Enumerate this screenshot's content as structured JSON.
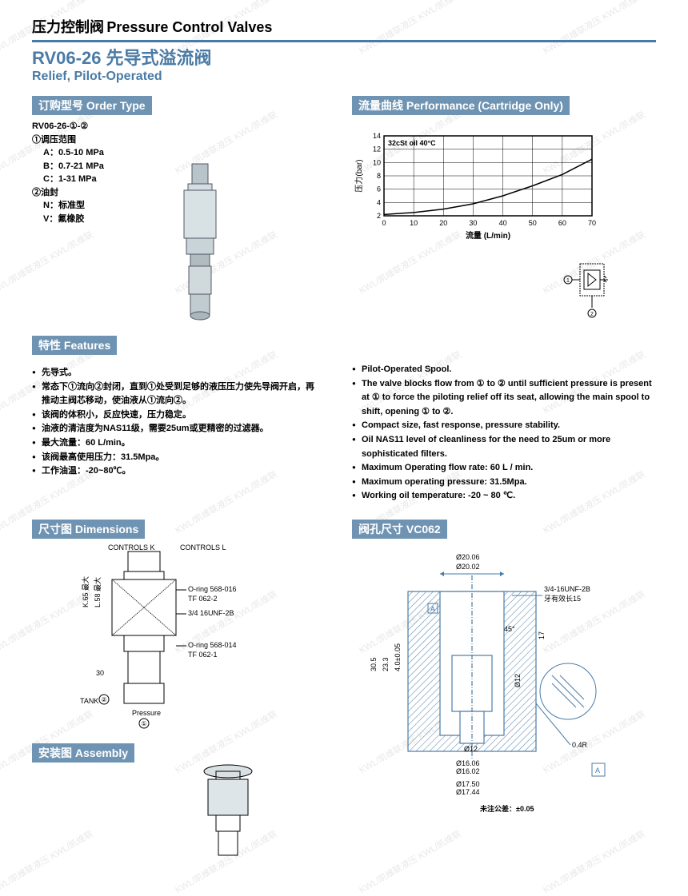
{
  "header": {
    "title_cn": "压力控制阀",
    "title_en": "Pressure Control Valves",
    "model": "RV06-26 先导式溢流阀",
    "subtitle": "Relief, Pilot-Operated"
  },
  "order": {
    "section_label": "订购型号 Order Type",
    "code": "RV06-26-①-②",
    "param1_label": "①调压范围",
    "p1a": "A：0.5-10 MPa",
    "p1b": "B：0.7-21 MPa",
    "p1c": "C：1-31 MPa",
    "param2_label": "②油封",
    "p2n": "N：标准型",
    "p2v": "V：氟橡胶"
  },
  "performance": {
    "section_label": "流量曲线 Performance (Cartridge Only)",
    "chart": {
      "type": "line",
      "title": "32cSt oil 40°C",
      "ylabel": "压力(bar)",
      "xlabel": "流量 (L/min)",
      "xlim": [
        0,
        70
      ],
      "xtick_step": 10,
      "ylim": [
        2,
        14
      ],
      "ytick_step": 2,
      "yticks": [
        2,
        4,
        6,
        8,
        10,
        12,
        14
      ],
      "xticks": [
        0,
        10,
        20,
        30,
        40,
        50,
        60,
        70
      ],
      "line_color": "#000000",
      "grid_color": "#000000",
      "background_color": "#ffffff",
      "x_values": [
        0,
        10,
        20,
        30,
        40,
        50,
        60,
        70
      ],
      "y_values": [
        2.2,
        2.5,
        3.0,
        3.8,
        5.0,
        6.5,
        8.2,
        10.5
      ]
    }
  },
  "features": {
    "section_label": "特性 Features",
    "cn": [
      "先导式。",
      "常态下①流向②封闭，直到①处受到足够的液压压力使先导阀开启，再推动主阀芯移动，使油液从①流向②。",
      "该阀的体积小，反应快速，压力稳定。",
      "油液的清洁度为NAS11级，需要25um或更精密的过滤器。",
      "最大流量：60 L/min。",
      "该阀最高使用压力：31.5Mpa。",
      "工作油温：-20~80℃。"
    ],
    "en": [
      "Pilot-Operated Spool.",
      "The valve blocks flow from ① to ② until sufficient pressure is present at ① to force the piloting relief off its seat, allowing the main spool to shift, opening ① to ②.",
      "Compact size, fast response, pressure stability.",
      "Oil NAS11 level of cleanliness for the need to 25um or more sophisticated filters.",
      "Maximum Operating flow rate: 60 L / min.",
      "Maximum operating pressure: 31.5Mpa.",
      "Working oil temperature: -20 ~ 80 ℃."
    ]
  },
  "dimensions": {
    "section_label": "尺寸图 Dimensions",
    "labels": {
      "controls_k": "CONTROLS K",
      "controls_l": "CONTROLS L",
      "k65": "K.65 最大",
      "l58": "L.58 最大",
      "d30": "30",
      "tank": "TANK",
      "pressure": "Pressure",
      "oring1": "O-ring 568-016",
      "tf1": "TF 062-2",
      "thread": "3/4 16UNF-2B",
      "oring2": "O-ring 568-014",
      "tf2": "TF 062-1",
      "circ1": "①",
      "circ2": "②"
    }
  },
  "assembly": {
    "section_label": "安装图 Assembly"
  },
  "vc062": {
    "section_label": "阀孔尺寸 VC062",
    "labels": {
      "d2006": "Ø20.06",
      "d2002": "Ø20.02",
      "thread": "3/4-16UNF-2B",
      "thread_len": "牙有效长15",
      "d305": "30.5",
      "d233": "23.3",
      "d40": "4.0±0.05",
      "ang45": "45°",
      "d17": "17",
      "d12": "Ø12",
      "d12b": "Ø12",
      "d1606": "Ø16.06",
      "d1602": "Ø16.02",
      "d1750": "Ø17.50",
      "d1744": "Ø17.44",
      "r04": "0.4R",
      "tol": "未注公差：±0.05",
      "box_a": "A"
    }
  },
  "watermark_text": "KWL/凯维联液压 KWL/凯维联",
  "colors": {
    "blue": "#4a7ba6",
    "tag_bg": "#6f94b3",
    "text": "#000000",
    "grid": "#000000"
  }
}
